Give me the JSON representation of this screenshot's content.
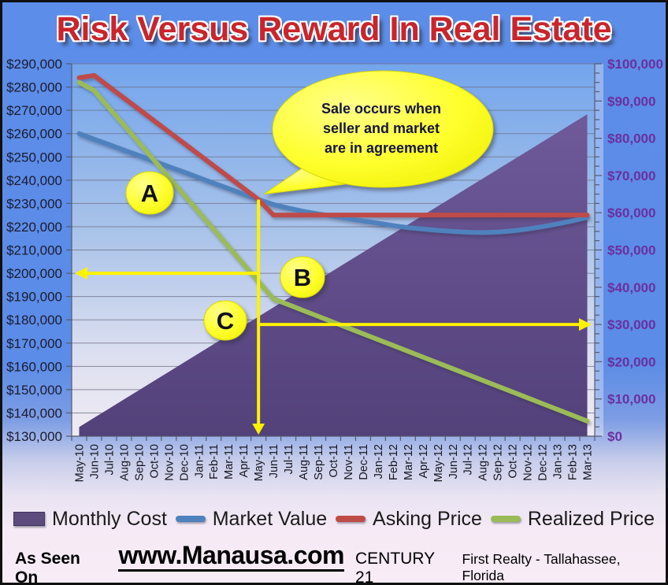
{
  "title": "Risk Versus Reward In Real Estate",
  "callout": {
    "lines": [
      "Sale occurs when",
      "seller and market",
      "are in agreement"
    ]
  },
  "annotations": {
    "markers": [
      {
        "label": "A"
      },
      {
        "label": "B"
      },
      {
        "label": "C"
      }
    ],
    "sale_month": "May-11",
    "sale_value_left_axis": 231650,
    "left_arrow_value": 200000,
    "right_arrow_value": 30000,
    "arrow_color": "#fff200"
  },
  "chart_data": {
    "type": "line",
    "title": "Risk Versus Reward In Real Estate",
    "grid": true,
    "legend_position": "bottom",
    "categories": [
      "May-10",
      "Jun-10",
      "Jul-10",
      "Aug-10",
      "Sep-10",
      "Oct-10",
      "Nov-10",
      "Dec-10",
      "Jan-11",
      "Feb-11",
      "Mar-11",
      "Apr-11",
      "May-11",
      "Jun-11",
      "Jul-11",
      "Aug-11",
      "Sep-11",
      "Oct-11",
      "Nov-11",
      "Dec-11",
      "Jan-12",
      "Feb-12",
      "Mar-12",
      "Apr-12",
      "May-12",
      "Jun-12",
      "Jul-12",
      "Aug-12",
      "Sep-12",
      "Oct-12",
      "Nov-12",
      "Dec-12",
      "Jan-13",
      "Feb-13",
      "Mar-13"
    ],
    "left_axis": {
      "min": 130000,
      "max": 290000,
      "step": 10000,
      "labels": [
        "$290,000",
        "$280,000",
        "$270,000",
        "$260,000",
        "$250,000",
        "$240,000",
        "$230,000",
        "$220,000",
        "$210,000",
        "$200,000",
        "$190,000",
        "$180,000",
        "$170,000",
        "$160,000",
        "$150,000",
        "$140,000",
        "$130,000"
      ],
      "color": "#1b1b2f"
    },
    "right_axis": {
      "min": 0,
      "max": 100000,
      "step": 10000,
      "minor_step": 2500,
      "labels": [
        "$100,000",
        "$90,000",
        "$80,000",
        "$70,000",
        "$60,000",
        "$50,000",
        "$40,000",
        "$30,000",
        "$20,000",
        "$10,000",
        "$0"
      ],
      "color": "#6b2fa0"
    },
    "series": [
      {
        "name": "Monthly Cost",
        "kind": "area",
        "axis": "right",
        "color": "#5d4b7e",
        "values": [
          2470,
          4940,
          7410,
          9880,
          12350,
          14820,
          17290,
          19760,
          22230,
          24700,
          27170,
          29640,
          32110,
          34580,
          37050,
          39520,
          41990,
          44460,
          46930,
          49400,
          51870,
          54340,
          56810,
          59280,
          61750,
          64220,
          66690,
          69160,
          71630,
          74100,
          76570,
          79040,
          81510,
          83980,
          86450
        ]
      },
      {
        "name": "Market Value",
        "kind": "line",
        "axis": "left",
        "color": "#4f81bd",
        "values": [
          260000,
          257600,
          255300,
          252900,
          250600,
          248200,
          245800,
          243500,
          241100,
          238700,
          236400,
          234000,
          231650,
          229500,
          228000,
          226600,
          225500,
          224500,
          223500,
          222500,
          221500,
          220500,
          219600,
          219000,
          218400,
          218000,
          217600,
          217500,
          217700,
          218200,
          219000,
          220000,
          221200,
          222500,
          224000
        ]
      },
      {
        "name": "Asking Price",
        "kind": "line",
        "axis": "left",
        "color": "#be4b48",
        "values": [
          284000,
          285000,
          280150,
          275300,
          270450,
          265600,
          260750,
          255900,
          251050,
          246200,
          241350,
          236500,
          231650,
          225000,
          225000,
          225000,
          225000,
          225000,
          225000,
          225000,
          225000,
          225000,
          225000,
          225000,
          225000,
          225000,
          225000,
          225000,
          225000,
          225000,
          225000,
          225000,
          225000,
          225000,
          225000
        ]
      },
      {
        "name": "Realized Price",
        "kind": "line",
        "axis": "left",
        "color": "#9bbb59",
        "values": [
          282000,
          278500,
          271000,
          263600,
          256100,
          248700,
          241200,
          233800,
          226300,
          218900,
          211400,
          203900,
          196500,
          189000,
          186500,
          184000,
          181500,
          179000,
          176500,
          174000,
          171500,
          169000,
          166500,
          164000,
          161500,
          159000,
          156500,
          154000,
          151500,
          149000,
          146500,
          144000,
          141500,
          139000,
          136500
        ]
      }
    ]
  },
  "legend": {
    "items": [
      {
        "label": "Monthly Cost",
        "color": "#5d4b7e",
        "swatch": "square"
      },
      {
        "label": "Market Value",
        "color": "#4f81bd",
        "swatch": "dash"
      },
      {
        "label": "Asking Price",
        "color": "#be4b48",
        "swatch": "dash"
      },
      {
        "label": "Realized Price",
        "color": "#9bbb59",
        "swatch": "dash"
      }
    ]
  },
  "footer": {
    "prefix": "As Seen On",
    "site": "www.Manausa.com",
    "brand": "CENTURY 21",
    "brand_sub": "First Realty - Tallahassee, Florida"
  }
}
